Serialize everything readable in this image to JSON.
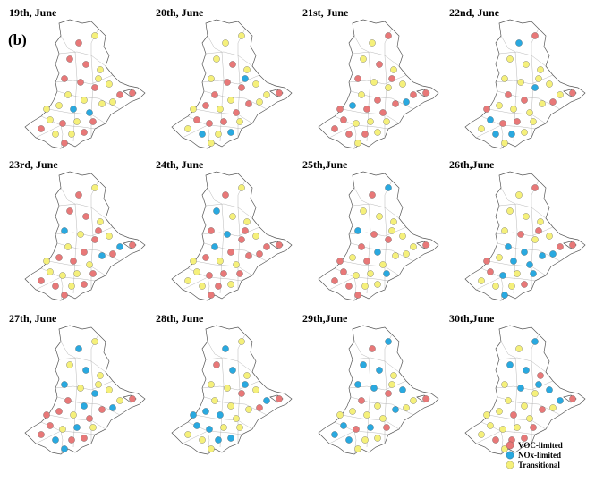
{
  "figure": {
    "panel_label": "(b)",
    "panels": [
      {
        "title": "19th, June",
        "seed": 1
      },
      {
        "title": "20th, June",
        "seed": 2
      },
      {
        "title": "21st, June",
        "seed": 3
      },
      {
        "title": "22nd, June",
        "seed": 4
      },
      {
        "title": "23rd, June",
        "seed": 5
      },
      {
        "title": "24th, June",
        "seed": 6
      },
      {
        "title": "25th,June",
        "seed": 7
      },
      {
        "title": "26th,June",
        "seed": 8
      },
      {
        "title": "27th, June",
        "seed": 9
      },
      {
        "title": "28th, June",
        "seed": 10
      },
      {
        "title": "29th,June",
        "seed": 11
      },
      {
        "title": "30th,June",
        "seed": 12
      }
    ]
  },
  "legend": {
    "items": [
      {
        "label": "VOC-limited",
        "color": "#e87878"
      },
      {
        "label": "NOx-limited",
        "color": "#29a9e0"
      },
      {
        "label": "Transitional",
        "color": "#f5f07a"
      }
    ]
  }
}
